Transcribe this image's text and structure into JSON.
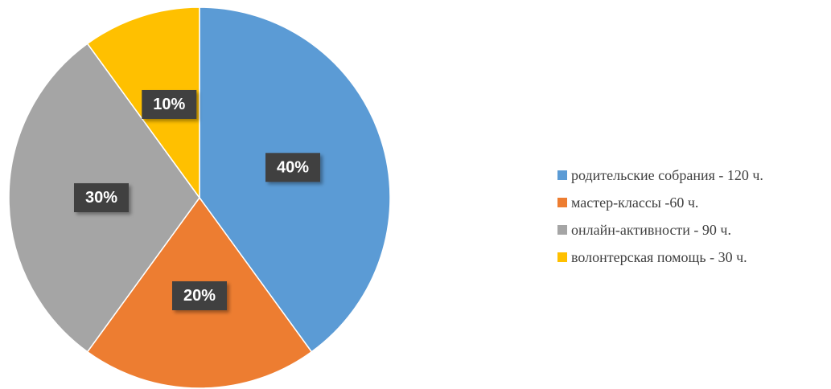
{
  "chart_data": {
    "type": "pie",
    "categories": [
      "родительские собрания - 120 ч.",
      "мастер-классы -60 ч.",
      "онлайн-активности - 90 ч.",
      "волонтерская помощь - 30 ч."
    ],
    "values": [
      40,
      20,
      30,
      10
    ],
    "value_labels": [
      "40%",
      "20%",
      "30%",
      "10%"
    ],
    "colors": [
      "#5b9bd5",
      "#ed7d31",
      "#a5a5a5",
      "#ffc000"
    ],
    "legend": "right"
  }
}
